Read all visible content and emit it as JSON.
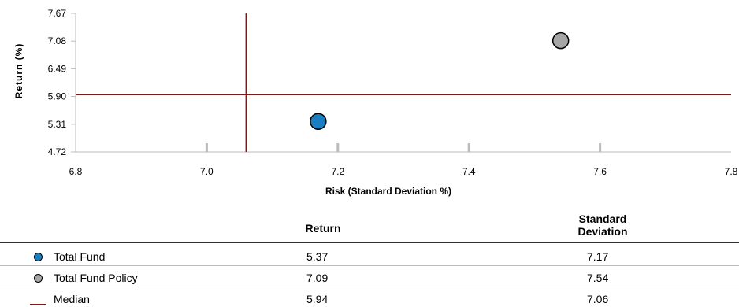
{
  "chart_data": {
    "type": "scatter",
    "xlabel": "Risk (Standard Deviation %)",
    "ylabel": "Return (%)",
    "xlim": [
      6.8,
      7.8
    ],
    "ylim": [
      4.72,
      7.67
    ],
    "xticks": [
      "6.8",
      "7.0",
      "7.2",
      "7.4",
      "7.6",
      "7.8"
    ],
    "yticks": [
      "7.67",
      "7.08",
      "6.49",
      "5.90",
      "5.31",
      "4.72"
    ],
    "series": [
      {
        "name": "Total Fund",
        "x": 7.17,
        "y": 5.37,
        "color": "#1a7fc1"
      },
      {
        "name": "Total Fund Policy",
        "x": 7.54,
        "y": 7.09,
        "color": "#a6a6a6"
      }
    ],
    "median": {
      "name": "Median",
      "x": 7.06,
      "y": 5.94,
      "color": "#7b1a1a"
    },
    "grid": false
  },
  "table": {
    "headers": {
      "return": "Return",
      "std_line1": "Standard",
      "std_line2": "Deviation"
    },
    "rows": [
      {
        "name": "Total Fund",
        "return": "5.37",
        "std": "7.17"
      },
      {
        "name": "Total Fund Policy",
        "return": "7.09",
        "std": "7.54"
      },
      {
        "name": "Median",
        "return": "5.94",
        "std": "7.06"
      }
    ]
  }
}
